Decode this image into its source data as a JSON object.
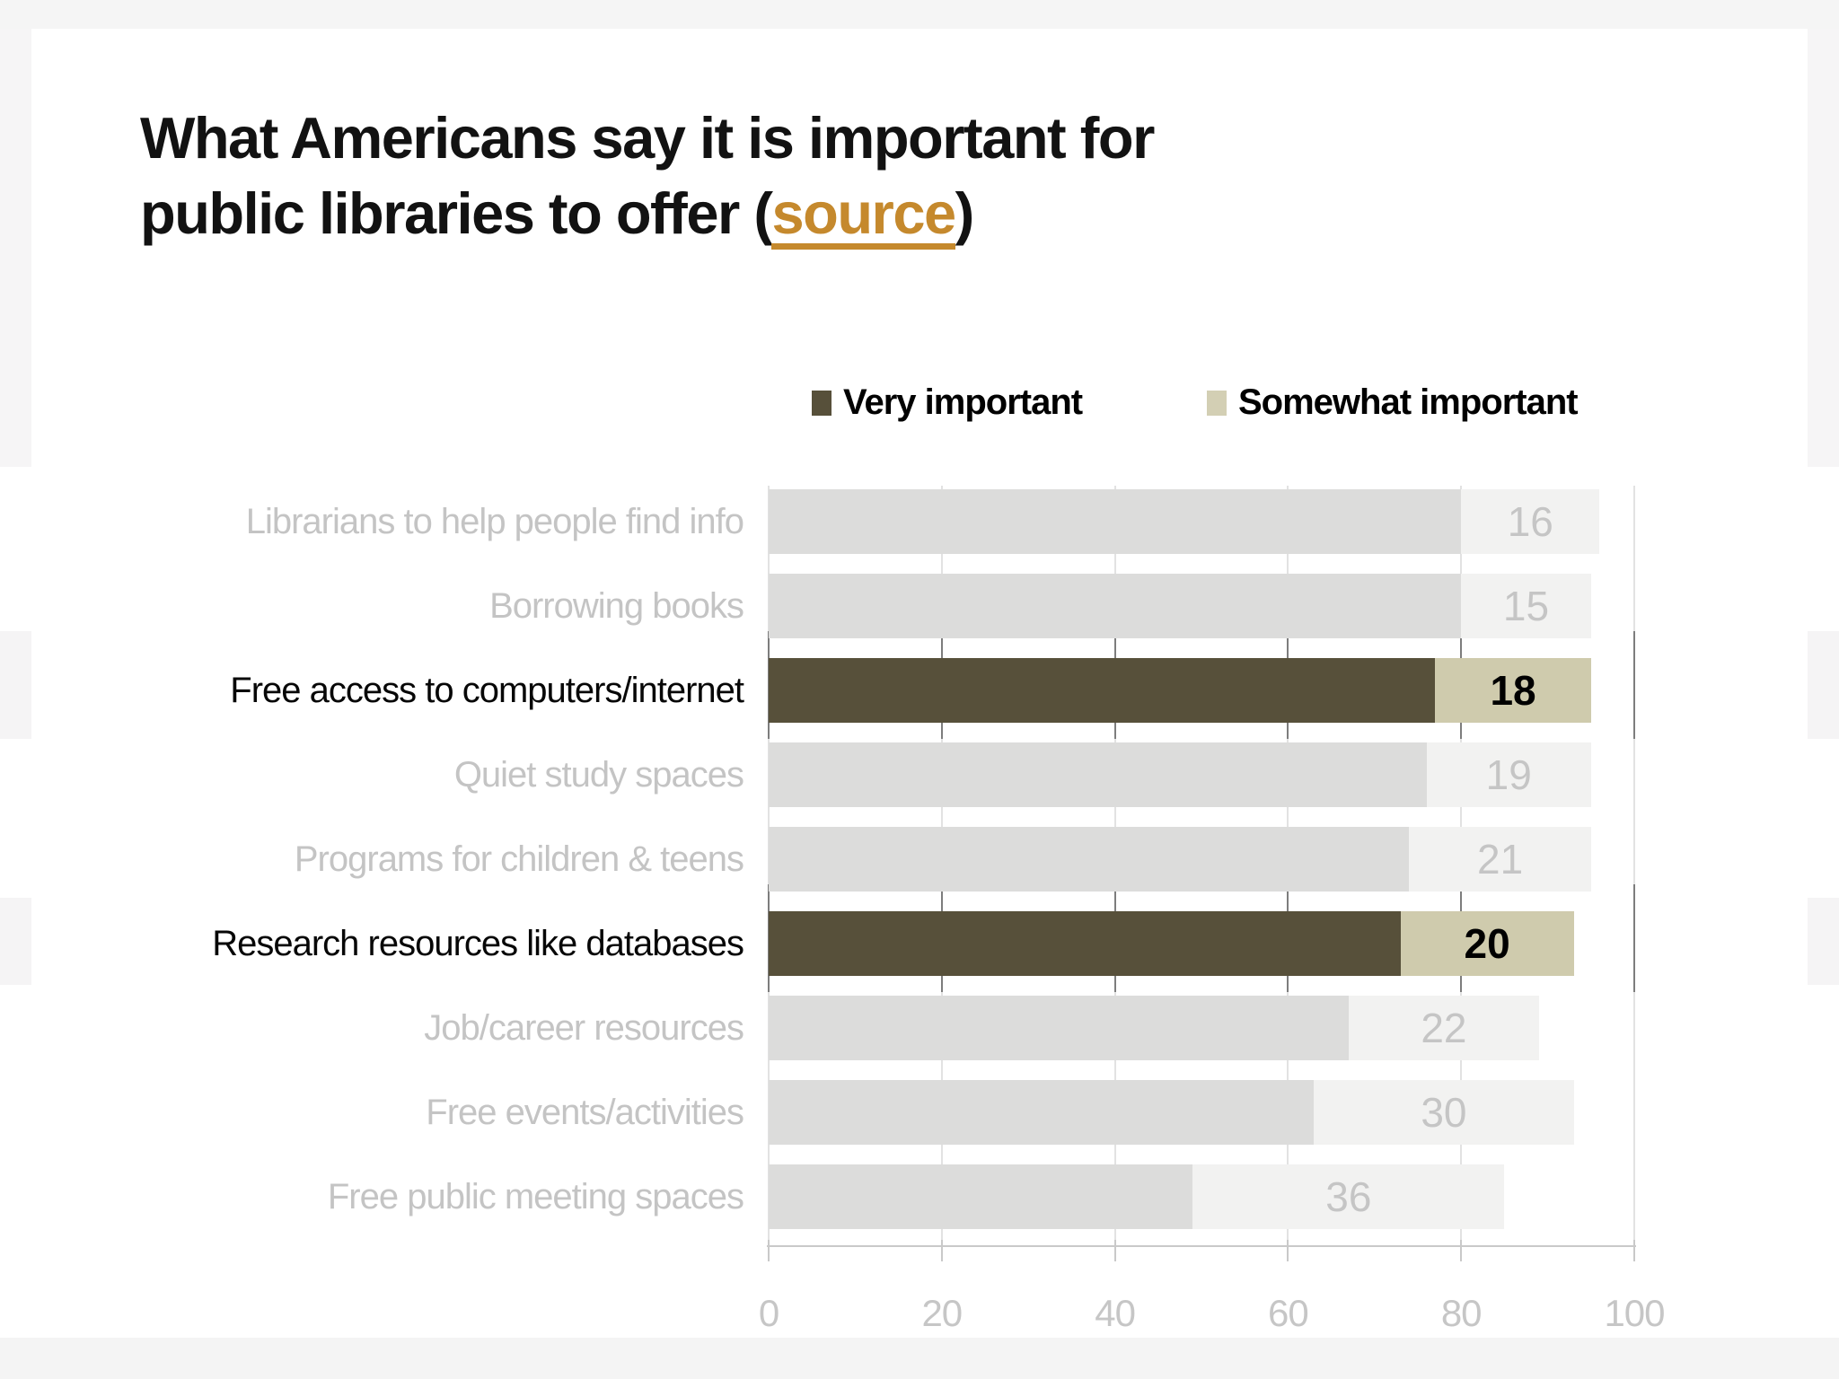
{
  "title": {
    "line1": "What Americans say it is important for",
    "line2_before_link": "public libraries to offer (",
    "link_text": "source",
    "line2_after_link": ")"
  },
  "legend": {
    "items": [
      {
        "label": "Very important",
        "color": "#57503a"
      },
      {
        "label": "Somewhat important",
        "color": "#d3cfb4"
      }
    ]
  },
  "chart_data": {
    "type": "bar",
    "orientation": "horizontal",
    "stacked": true,
    "title": "What Americans say it is important for public libraries to offer",
    "categories": [
      "Librarians to help people find info",
      "Borrowing books",
      "Free access to computers/internet",
      "Quiet study spaces",
      "Programs for children &  teens",
      "Research resources like databases",
      "Job/career resources",
      "Free events/activities",
      "Free public meeting spaces"
    ],
    "series": [
      {
        "name": "Very important",
        "values": [
          80,
          80,
          77,
          76,
          74,
          73,
          67,
          63,
          49
        ]
      },
      {
        "name": "Somewhat important",
        "values": [
          16,
          15,
          18,
          19,
          21,
          20,
          22,
          30,
          36
        ]
      }
    ],
    "data_labels_shown": "Somewhat important values, centered inside light segment",
    "highlight_flags": [
      false,
      false,
      true,
      false,
      false,
      true,
      false,
      false,
      false
    ],
    "highlighted_categories": [
      "Free access to computers/internet",
      "Research resources like databases"
    ],
    "x_ticks": [
      0,
      20,
      40,
      60,
      80,
      100
    ],
    "xlim": [
      0,
      100
    ],
    "grid": true,
    "legend_position": "top"
  },
  "colors": {
    "very_important": "#57503a",
    "somewhat_important": "#cfcbad",
    "muted_very": "#dcdcdb",
    "muted_somewhat": "#f2f2f1",
    "muted_label": "#c4c4c4",
    "highlight_label": "#000000",
    "link": "#c5892d",
    "axis": "#c9c9c9",
    "gridline": "#e2e2e2",
    "gridline_highlight": "#7d7d7d"
  }
}
